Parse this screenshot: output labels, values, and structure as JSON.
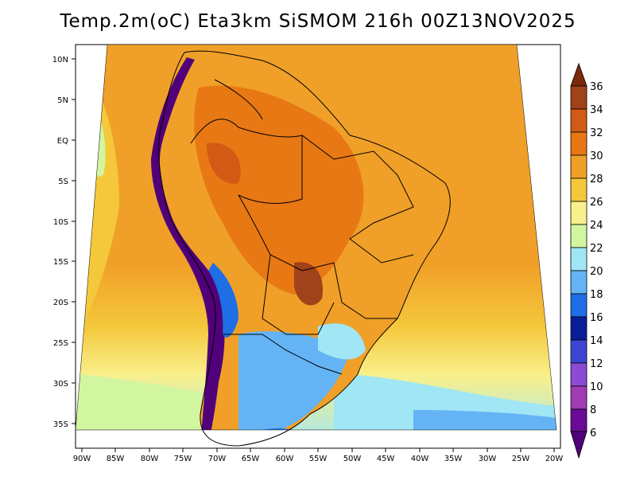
{
  "title": "Temp.2m(oC) Eta3km SiSMOM 216h 00Z13NOV2025",
  "lat_ticks": [
    "10N",
    "5N",
    "EQ",
    "5S",
    "10S",
    "15S",
    "20S",
    "25S",
    "30S",
    "35S"
  ],
  "lon_ticks": [
    "90W",
    "85W",
    "80W",
    "75W",
    "70W",
    "65W",
    "60W",
    "55W",
    "50W",
    "45W",
    "40W",
    "35W",
    "30W",
    "25W",
    "20W"
  ],
  "colorbar": {
    "unit": "oC",
    "labels": [
      "36",
      "34",
      "32",
      "30",
      "28",
      "26",
      "24",
      "22",
      "20",
      "18",
      "16",
      "14",
      "12",
      "10",
      "8",
      "6"
    ],
    "colors_top_to_bottom": [
      "#7a2a0a",
      "#a0421a",
      "#d25a14",
      "#e87814",
      "#f0a028",
      "#f5c83c",
      "#f8f08c",
      "#d2f5a0",
      "#a0e6f5",
      "#64b4f5",
      "#1e6ee6",
      "#0a1e96",
      "#3c46d2",
      "#8c4bd2",
      "#a03cb4",
      "#500078"
    ]
  },
  "map": {
    "region": "South America",
    "field": "2 m temperature",
    "colors": {
      "ocean_warm": "#f0a028",
      "ocean_mild": "#f5c83c",
      "ocean_cool": "#f8f08c",
      "land_hot": "#e87814",
      "land_very_hot": "#d25a14",
      "andes_cold": "#500078",
      "south_cool": "#64b4f5"
    }
  }
}
